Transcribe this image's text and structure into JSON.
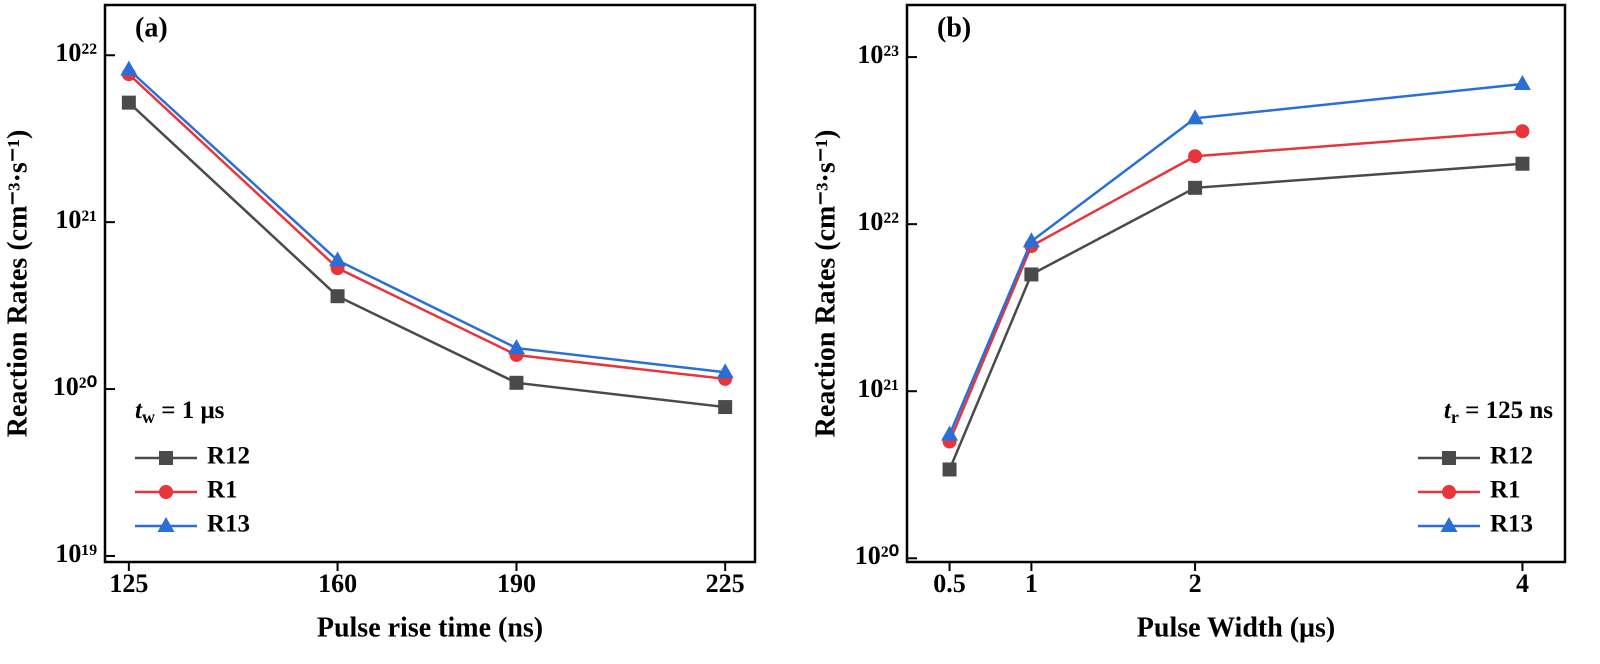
{
  "chart_data": [
    {
      "type": "line",
      "panel_label": "(a)",
      "xlabel": "Pulse rise time (ns)",
      "ylabel": "Reaction Rates (cm⁻³·s⁻¹)",
      "log_scale": "y",
      "legend_position": "lower left",
      "annotation": {
        "symbol": "t",
        "subscript": "w",
        "text": " = 1 μs"
      },
      "x": [
        125,
        160,
        190,
        225
      ],
      "xlim": [
        121,
        230
      ],
      "xticks": [
        125,
        160,
        190,
        225
      ],
      "ylim": [
        9.2e+18,
        2e+22
      ],
      "yticks": [
        {
          "value": 1e+19,
          "label": "10¹⁹"
        },
        {
          "value": 1e+20,
          "label": "10²⁰"
        },
        {
          "value": 1e+21,
          "label": "10²¹"
        },
        {
          "value": 1e+22,
          "label": "10²²"
        }
      ],
      "series": [
        {
          "name": "R12",
          "color": "#4a4a4a",
          "marker": "square",
          "values": [
            5.2e+21,
            3.6e+20,
            1.09e+20,
            7.8e+19
          ]
        },
        {
          "name": "R1",
          "color": "#e8353a",
          "marker": "circle",
          "values": [
            7.7e+21,
            5.3e+20,
            1.6e+20,
            1.15e+20
          ]
        },
        {
          "name": "R13",
          "color": "#2a6fd6",
          "marker": "triangle",
          "values": [
            8.2e+21,
            5.9e+20,
            1.76e+20,
            1.26e+20
          ]
        }
      ]
    },
    {
      "type": "line",
      "panel_label": "(b)",
      "xlabel": "Pulse Width (μs)",
      "ylabel": "Reaction Rates (cm⁻³·s⁻¹)",
      "log_scale": "y",
      "legend_position": "lower right",
      "annotation": {
        "symbol": "t",
        "subscript": "r",
        "text": " = 125 ns"
      },
      "x": [
        0.5,
        1,
        2,
        4
      ],
      "xlim": [
        0.24,
        4.26
      ],
      "xticks": [
        0.5,
        1,
        2,
        4
      ],
      "ylim": [
        9.5e+19,
        2.05e+23
      ],
      "yticks": [
        {
          "value": 1e+20,
          "label": "10²⁰"
        },
        {
          "value": 1e+21,
          "label": "10²¹"
        },
        {
          "value": 1e+22,
          "label": "10²²"
        },
        {
          "value": 1e+23,
          "label": "10²³"
        }
      ],
      "series": [
        {
          "name": "R12",
          "color": "#4a4a4a",
          "marker": "square",
          "values": [
            3.4e+20,
            5e+21,
            1.65e+22,
            2.3e+22
          ]
        },
        {
          "name": "R1",
          "color": "#e8353a",
          "marker": "circle",
          "values": [
            5e+20,
            7.4e+21,
            2.55e+22,
            3.6e+22
          ]
        },
        {
          "name": "R13",
          "color": "#2a6fd6",
          "marker": "triangle",
          "values": [
            5.5e+20,
            7.9e+21,
            4.3e+22,
            6.9e+22
          ]
        }
      ]
    }
  ]
}
